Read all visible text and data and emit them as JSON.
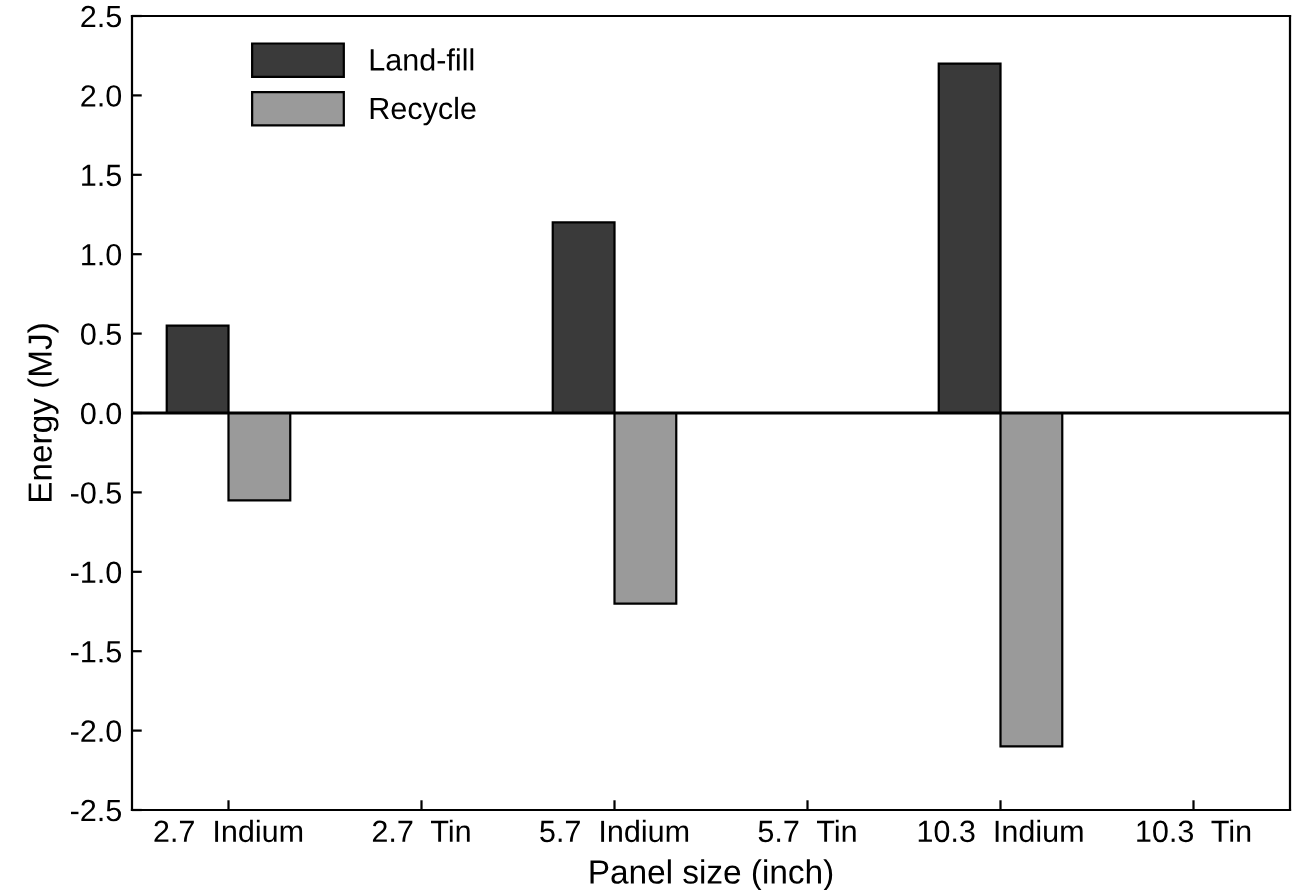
{
  "chart_data": {
    "type": "bar",
    "xlabel": "Panel size (inch)",
    "ylabel": "Energy (MJ)",
    "categories": [
      "2.7  Indium",
      "2.7  Tin",
      "5.7  Indium",
      "5.7  Tin",
      "10.3  Indium",
      "10.3  Tin"
    ],
    "series": [
      {
        "name": "Land-fill",
        "color": "#3a3a3a",
        "values": [
          0.55,
          null,
          1.2,
          null,
          2.2,
          null
        ]
      },
      {
        "name": "Recycle",
        "color": "#9a9a9a",
        "values": [
          -0.55,
          null,
          -1.2,
          null,
          -2.1,
          null
        ]
      }
    ],
    "ylim": [
      -2.5,
      2.5
    ],
    "yticks": [
      {
        "value": -2.5,
        "label": "-2.5"
      },
      {
        "value": -2.0,
        "label": "-2.0"
      },
      {
        "value": -1.5,
        "label": "-1.5"
      },
      {
        "value": -1.0,
        "label": "-1.0"
      },
      {
        "value": -0.5,
        "label": "-0.5"
      },
      {
        "value": 0.0,
        "label": "0.0"
      },
      {
        "value": 0.5,
        "label": "0.5"
      },
      {
        "value": 1.0,
        "label": "1.0"
      },
      {
        "value": 1.5,
        "label": "1.5"
      },
      {
        "value": 2.0,
        "label": "2.0"
      },
      {
        "value": 2.5,
        "label": "2.5"
      }
    ],
    "ref_lines": [
      {
        "axis": "y",
        "value": 0,
        "color": "#000000"
      }
    ],
    "legend": "top left",
    "grid": false
  }
}
